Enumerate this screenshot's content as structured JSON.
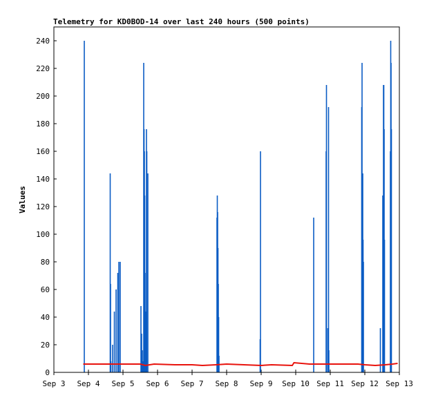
{
  "chart_data": {
    "type": "line",
    "title": "Telemetry for KD0BOD-14 over last 240 hours (500 points)",
    "xlabel": "",
    "ylabel": "Values",
    "xlim": [
      3,
      13
    ],
    "ylim": [
      0,
      250
    ],
    "x_ticks": [
      3,
      4,
      5,
      6,
      7,
      8,
      9,
      10,
      11,
      12,
      13
    ],
    "x_tick_labels": [
      "Sep 3",
      "Sep 4",
      "Sep 5",
      "Sep 6",
      "Sep 7",
      "Sep 8",
      "Sep 9",
      "Sep 10",
      "Sep 11",
      "Sep 12",
      "Sep 13"
    ],
    "y_ticks": [
      0,
      20,
      40,
      60,
      80,
      100,
      120,
      140,
      160,
      180,
      200,
      220,
      240
    ],
    "grid": false,
    "series": [
      {
        "color": "#0a5cc4",
        "style": "spikes",
        "x": [
          3.87,
          3.88,
          3.89,
          4.62,
          4.63,
          4.64,
          4.65,
          4.66,
          4.7,
          4.75,
          4.8,
          4.85,
          4.88,
          4.92,
          4.96,
          4.98,
          5.52,
          5.54,
          5.56,
          5.58,
          5.6,
          5.61,
          5.62,
          5.63,
          5.64,
          5.65,
          5.66,
          5.67,
          5.68,
          5.69,
          5.7,
          5.72,
          5.75,
          5.76,
          5.79,
          5.82,
          5.83,
          5.86,
          5.88,
          7.72,
          7.73,
          7.74,
          7.75,
          7.76,
          7.77,
          7.78,
          7.79,
          7.8,
          7.81,
          8.97,
          8.98,
          8.99,
          10.52,
          10.53,
          10.88,
          10.89,
          10.9,
          10.93,
          10.95,
          10.96,
          10.98,
          11.9,
          11.91,
          11.92,
          11.93,
          11.94,
          11.95,
          11.96,
          11.97,
          11.98,
          11.99,
          12.45,
          12.46,
          12.5,
          12.52,
          12.54,
          12.55,
          12.56,
          12.57,
          12.58,
          12.59,
          12.6,
          12.74,
          12.75,
          12.76,
          12.77,
          12.78,
          12.79,
          12.8,
          12.81
        ],
        "y": [
          0,
          240,
          0,
          0,
          144,
          64,
          8,
          0,
          20,
          44,
          60,
          72,
          80,
          80,
          0,
          0,
          48,
          28,
          16,
          8,
          224,
          176,
          160,
          128,
          72,
          0,
          44,
          0,
          176,
          160,
          0,
          144,
          0,
          0,
          0,
          0,
          0,
          0,
          0,
          112,
          128,
          116,
          90,
          64,
          40,
          12,
          0,
          0,
          0,
          24,
          160,
          0,
          112,
          0,
          160,
          208,
          0,
          32,
          192,
          16,
          0,
          0,
          192,
          224,
          0,
          144,
          96,
          80,
          0,
          0,
          0,
          32,
          0,
          0,
          128,
          208,
          208,
          176,
          96,
          0,
          0,
          0,
          160,
          240,
          224,
          176,
          0,
          0,
          0,
          0
        ]
      },
      {
        "color": "#e8120c",
        "style": "line",
        "x": [
          3.85,
          4.5,
          5.0,
          5.5,
          5.65,
          5.9,
          6.5,
          7.0,
          7.3,
          7.7,
          8.0,
          8.5,
          9.0,
          9.3,
          9.9,
          9.95,
          10.4,
          11.0,
          11.5,
          11.8,
          12.0,
          12.3,
          12.6,
          12.8,
          12.95
        ],
        "y": [
          6,
          6,
          6,
          6,
          5,
          6,
          5.5,
          5.5,
          5,
          5.5,
          6,
          5.5,
          5,
          5.5,
          5,
          7,
          6,
          6,
          6,
          6,
          5.5,
          5,
          5.5,
          6,
          6.5
        ]
      }
    ]
  }
}
